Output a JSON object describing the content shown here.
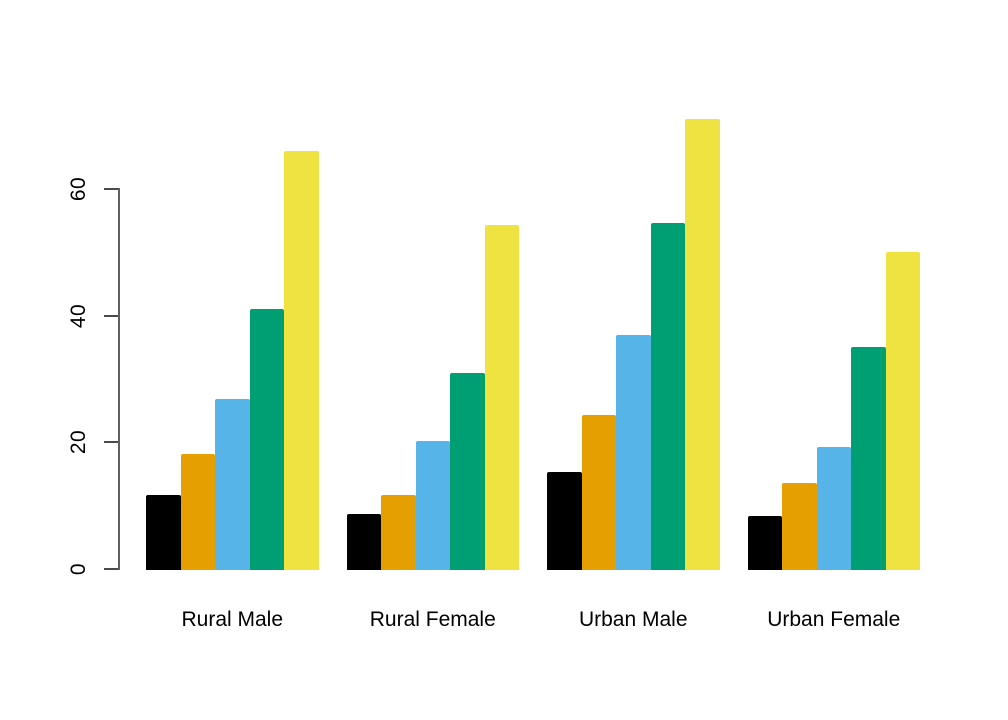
{
  "chart_data": {
    "type": "bar",
    "title": "",
    "xlabel": "",
    "ylabel": "",
    "categories": [
      "Rural Male",
      "Rural Female",
      "Urban Male",
      "Urban Female"
    ],
    "series": [
      {
        "name": "black",
        "color": "#000000",
        "values": [
          11.7,
          8.7,
          15.4,
          8.4
        ]
      },
      {
        "name": "orange",
        "color": "#E69F00",
        "values": [
          18.1,
          11.7,
          24.3,
          13.6
        ]
      },
      {
        "name": "sky-blue",
        "color": "#56B4E9",
        "values": [
          26.9,
          20.3,
          37.0,
          19.3
        ]
      },
      {
        "name": "green",
        "color": "#009E73",
        "values": [
          41.0,
          30.9,
          54.6,
          35.1
        ]
      },
      {
        "name": "yellow",
        "color": "#EFE342",
        "values": [
          66.0,
          54.3,
          71.1,
          50.0
        ]
      }
    ],
    "y_ticks": [
      0,
      20,
      40,
      60
    ],
    "ylim": [
      0,
      72
    ],
    "grid": false,
    "legend": "none",
    "bar_orientation": "vertical",
    "grouping": "beside",
    "axis_color": "#5f5f5f",
    "text_color": "#000000",
    "background_color": "#ffffff"
  }
}
